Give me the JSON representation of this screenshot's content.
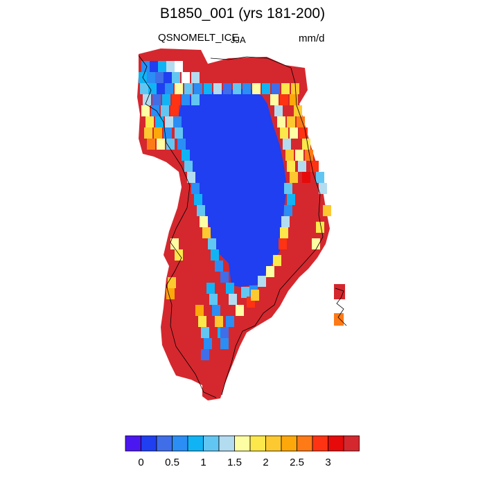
{
  "title": "B1850_001 (yrs 181-200)",
  "variable": "QSNOMELT_ICE",
  "season": "JJA",
  "units": "mm/d",
  "colorbar": {
    "colors": [
      "#4b17f0",
      "#1f3ff0",
      "#3f6ee8",
      "#2a8ef5",
      "#10b4f5",
      "#62c6f2",
      "#b4dcf0",
      "#fdfda4",
      "#fde84b",
      "#fdc930",
      "#fda80a",
      "#fd7a17",
      "#fd3313",
      "#e60a0a",
      "#d4282e"
    ],
    "tick_labels": [
      "0",
      "0.5",
      "1",
      "1.5",
      "2",
      "2.5",
      "3"
    ]
  },
  "map_colors": {
    "interior": "#1f3ff0",
    "margin": "#d4282e",
    "coast": "#000000"
  }
}
